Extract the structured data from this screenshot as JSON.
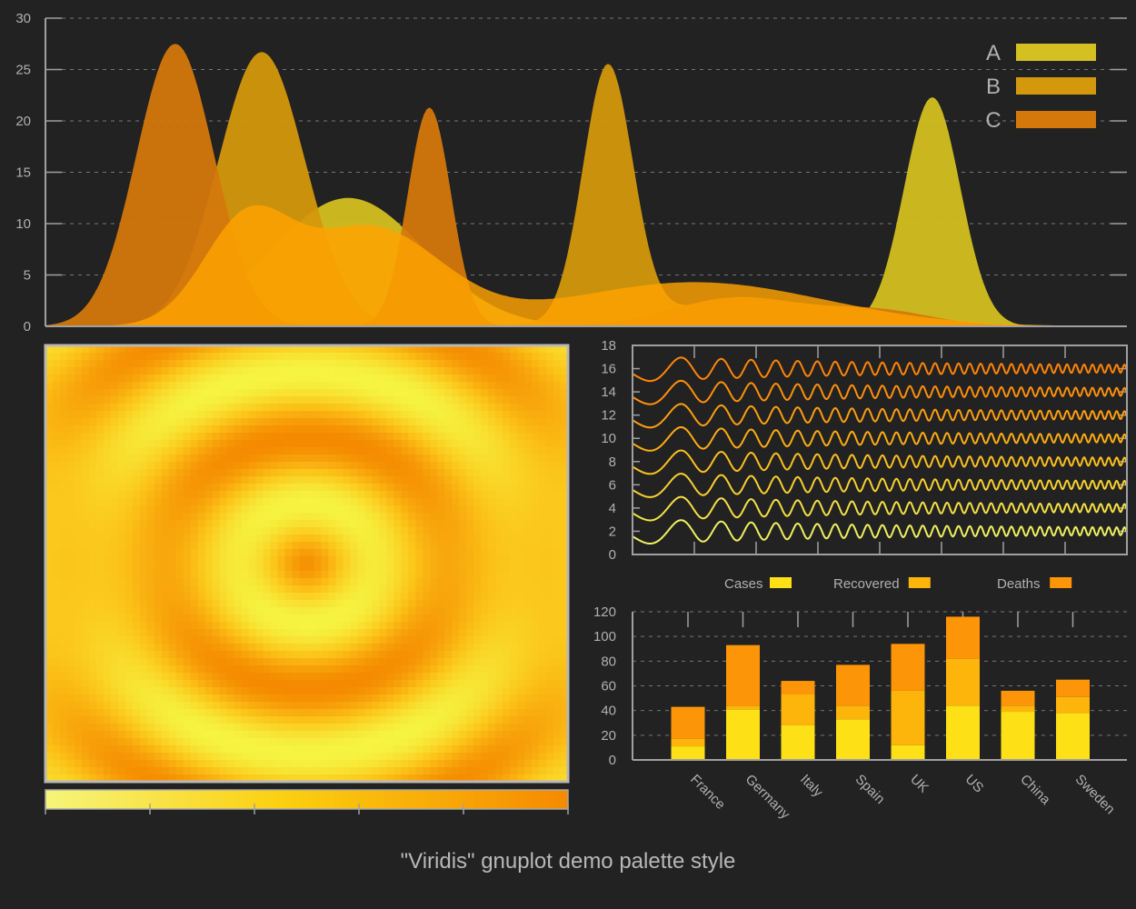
{
  "caption": "\"Viridis\" gnuplot demo palette style",
  "colors": {
    "background": "#222222",
    "axis": "#a0a0a0",
    "text": "#b0b0b0",
    "grid": "#8a8a8a",
    "series_A": "#d4c020",
    "series_B": "#d4980c",
    "series_C": "#d4780c",
    "bright_orange": "#ff9d00",
    "bright_yellow": "#fcd000"
  },
  "chart_data": [
    {
      "type": "area",
      "xlim": [
        0,
        100
      ],
      "ylim": [
        0,
        30
      ],
      "yticks": [
        0,
        5,
        10,
        15,
        20,
        25,
        30
      ],
      "grid": true,
      "legend_position": "top-right",
      "series": [
        {
          "name": "A",
          "color": "#d4c020",
          "peaks": [
            {
              "x": 28,
              "height": 12.5,
              "width": 7
            },
            {
              "x": 82,
              "height": 22.3,
              "width": 2.6
            }
          ]
        },
        {
          "name": "B",
          "color": "#d4980c",
          "peaks": [
            {
              "x": 20,
              "height": 26.7,
              "width": 4
            },
            {
              "x": 52,
              "height": 24.8,
              "width": 2.3
            },
            {
              "x": 66,
              "height": 2.5,
              "width": 9
            }
          ]
        },
        {
          "name": "C",
          "color": "#d4780c",
          "peaks": [
            {
              "x": 12,
              "height": 27.5,
              "width": 3.6
            },
            {
              "x": 35.5,
              "height": 21.3,
              "width": 2
            },
            {
              "x": 64,
              "height": 2.8,
              "width": 6
            },
            {
              "x": 77,
              "height": 1.5,
              "width": 5
            }
          ]
        }
      ],
      "overlays": [
        {
          "color": "#ffa200",
          "peaks": [
            {
              "x": 18.5,
              "height": 9.5,
              "width": 4
            },
            {
              "x": 30,
              "height": 9.5,
              "width": 6.5
            },
            {
              "x": 60,
              "height": 4.3,
              "width": 12
            }
          ]
        }
      ]
    },
    {
      "type": "heatmap",
      "function": "concentric rings",
      "colorbar": {
        "position": "bottom",
        "ticks": 6,
        "from": "#f5f57a",
        "to": "#f58a00"
      }
    },
    {
      "type": "line",
      "x": [
        0,
        1,
        2,
        3,
        4,
        5,
        6,
        7
      ],
      "ylim": [
        0,
        18
      ],
      "yticks": [
        0,
        2,
        4,
        6,
        8,
        10,
        12,
        14,
        16,
        18
      ],
      "series": [
        {
          "offset": 2,
          "color": "#f0f060"
        },
        {
          "offset": 4,
          "color": "#f5e046"
        },
        {
          "offset": 6,
          "color": "#f8d030"
        },
        {
          "offset": 8,
          "color": "#fbc020"
        },
        {
          "offset": 10,
          "color": "#fcac14"
        },
        {
          "offset": 12,
          "color": "#fd9e10"
        },
        {
          "offset": 14,
          "color": "#fe900c"
        },
        {
          "offset": 16,
          "color": "#ff8408"
        }
      ]
    },
    {
      "type": "bar",
      "categories": [
        "France",
        "Germany",
        "Italy",
        "Spain",
        "UK",
        "US",
        "China",
        "Sweden"
      ],
      "ylim": [
        0,
        120
      ],
      "yticks": [
        0,
        20,
        40,
        60,
        80,
        100,
        120
      ],
      "legend_position": "top",
      "series": [
        {
          "name": "Cases",
          "color": "#fde016",
          "values": [
            11,
            41,
            28,
            33,
            12,
            44,
            39,
            38
          ]
        },
        {
          "name": "Recovered",
          "color": "#fdb50c",
          "values": [
            6,
            3,
            25,
            11,
            44,
            38,
            5,
            13
          ]
        },
        {
          "name": "Deaths",
          "color": "#fd9508",
          "values": [
            26,
            49,
            11,
            33,
            38,
            34,
            12,
            14
          ]
        }
      ]
    }
  ]
}
